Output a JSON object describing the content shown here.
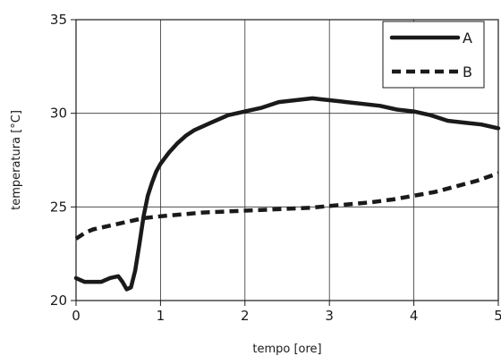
{
  "chart_data": {
    "type": "line",
    "title": "",
    "xlabel": "tempo [ore]",
    "ylabel": "temperatura [°C]",
    "xlim": [
      0,
      5
    ],
    "ylim": [
      20,
      35
    ],
    "x_ticks": [
      0,
      1,
      2,
      3,
      4,
      5
    ],
    "y_ticks": [
      20,
      25,
      30,
      35
    ],
    "grid": true,
    "legend_position": "top-right",
    "series": [
      {
        "name": "A",
        "style": "solid",
        "color": "#1a1a1a",
        "x": [
          0,
          0.1,
          0.2,
          0.3,
          0.4,
          0.5,
          0.55,
          0.6,
          0.65,
          0.7,
          0.75,
          0.8,
          0.85,
          0.9,
          0.95,
          1.0,
          1.1,
          1.2,
          1.3,
          1.4,
          1.5,
          1.6,
          1.7,
          1.8,
          1.9,
          2.0,
          2.2,
          2.4,
          2.6,
          2.8,
          2.9,
          3.0,
          3.2,
          3.4,
          3.6,
          3.8,
          4.0,
          4.2,
          4.4,
          4.6,
          4.8,
          5.0
        ],
        "y": [
          21.2,
          21.0,
          21.0,
          21.0,
          21.2,
          21.3,
          21.0,
          20.6,
          20.7,
          21.6,
          23.0,
          24.5,
          25.6,
          26.3,
          26.9,
          27.3,
          27.9,
          28.4,
          28.8,
          29.1,
          29.3,
          29.5,
          29.7,
          29.9,
          30.0,
          30.1,
          30.3,
          30.6,
          30.7,
          30.8,
          30.75,
          30.7,
          30.6,
          30.5,
          30.4,
          30.2,
          30.1,
          29.9,
          29.6,
          29.5,
          29.4,
          29.2
        ]
      },
      {
        "name": "B",
        "style": "dashed",
        "color": "#1a1a1a",
        "x": [
          0,
          0.1,
          0.2,
          0.3,
          0.4,
          0.5,
          0.6,
          0.7,
          0.8,
          0.9,
          1.0,
          1.25,
          1.5,
          1.75,
          2.0,
          2.25,
          2.5,
          2.75,
          3.0,
          3.25,
          3.5,
          3.75,
          4.0,
          4.25,
          4.5,
          4.75,
          5.0
        ],
        "y": [
          23.3,
          23.6,
          23.8,
          23.9,
          24.0,
          24.1,
          24.2,
          24.3,
          24.4,
          24.45,
          24.5,
          24.6,
          24.7,
          24.75,
          24.8,
          24.85,
          24.9,
          24.95,
          25.05,
          25.15,
          25.25,
          25.4,
          25.6,
          25.8,
          26.1,
          26.4,
          26.8
        ]
      }
    ]
  }
}
